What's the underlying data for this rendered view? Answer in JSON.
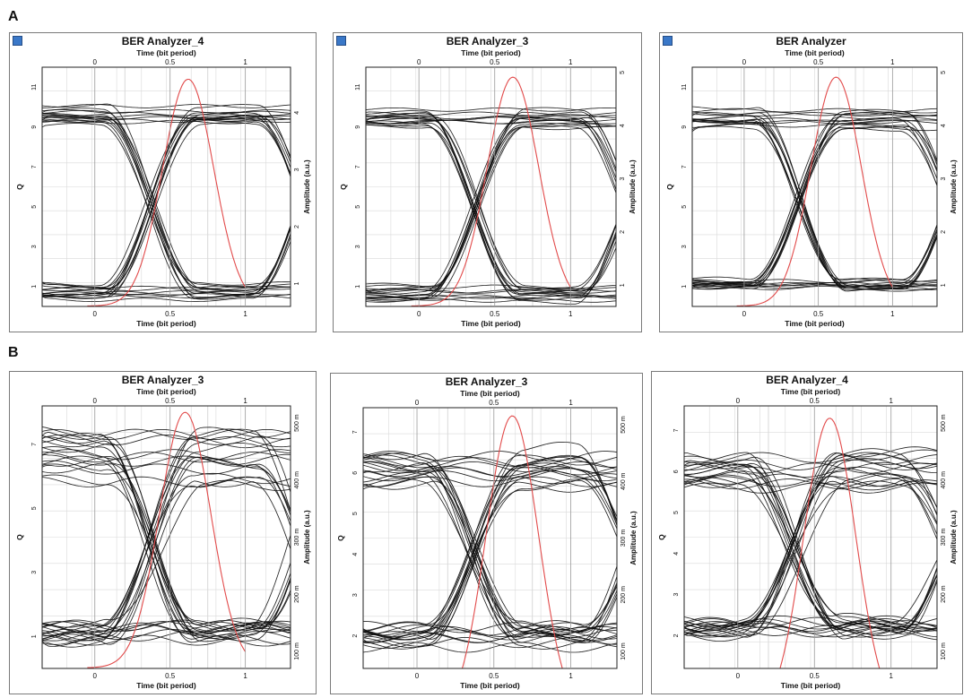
{
  "row_labels": [
    "A",
    "B"
  ],
  "chart_data": [
    {
      "type": "line",
      "title": "BER Analyzer_4",
      "xlabel": "Time (bit period)",
      "ylabel": "Q",
      "y2label": "Amplitude (a.u.)",
      "xlim": [
        -0.35,
        1.3
      ],
      "x_ticks": [
        "0",
        "0.5",
        "1"
      ],
      "y_ticks": [
        "1",
        "3",
        "5",
        "7",
        "9",
        "11"
      ],
      "y2_ticks": [
        "1",
        "2",
        "3",
        "4"
      ],
      "ylim": [
        0,
        12
      ],
      "y2lim": [
        0.6,
        4.8
      ],
      "grid": true,
      "eye": {
        "high": 9.6,
        "low": 0.8,
        "high_thick": 0.6,
        "low_thick": 0.6,
        "cross_thick": 0.7,
        "noise": 0.25,
        "traces": 34
      },
      "q_curve": {
        "peak_x": 0.62,
        "peak": 11.4,
        "sigma": 0.17,
        "start": 0.02
      }
    },
    {
      "type": "line",
      "title": "BER Analyzer_3",
      "xlabel": "Time (bit period)",
      "ylabel": "Q",
      "y2label": "Amplitude (a.u.)",
      "xlim": [
        -0.35,
        1.3
      ],
      "x_ticks": [
        "0",
        "0.5",
        "1"
      ],
      "y_ticks": [
        "1",
        "3",
        "5",
        "7",
        "9",
        "11"
      ],
      "y2_ticks": [
        "1",
        "2",
        "3",
        "4",
        "5"
      ],
      "ylim": [
        0,
        12
      ],
      "y2lim": [
        0.6,
        5.1
      ],
      "grid": true,
      "eye": {
        "high": 9.4,
        "low": 0.6,
        "high_thick": 0.6,
        "low_thick": 0.5,
        "cross_thick": 0.7,
        "noise": 0.25,
        "traces": 34
      },
      "q_curve": {
        "peak_x": 0.62,
        "peak": 11.5,
        "sigma": 0.17,
        "start": 0.02
      }
    },
    {
      "type": "line",
      "title": "BER Analyzer",
      "xlabel": "Time (bit period)",
      "ylabel": "Q",
      "y2label": "Amplitude (a.u.)",
      "xlim": [
        -0.35,
        1.3
      ],
      "x_ticks": [
        "0",
        "0.5",
        "1"
      ],
      "y_ticks": [
        "1",
        "3",
        "5",
        "7",
        "9",
        "11"
      ],
      "y2_ticks": [
        "1",
        "2",
        "3",
        "4",
        "5"
      ],
      "ylim": [
        0,
        12
      ],
      "y2lim": [
        0.6,
        5.1
      ],
      "grid": true,
      "eye": {
        "high": 9.4,
        "low": 1.1,
        "high_thick": 0.6,
        "low_thick": 0.4,
        "cross_thick": 0.7,
        "noise": 0.25,
        "traces": 34
      },
      "q_curve": {
        "peak_x": 0.62,
        "peak": 11.5,
        "sigma": 0.17,
        "start": 0.02
      }
    },
    {
      "type": "line",
      "title": "BER Analyzer_3",
      "xlabel": "Time (bit period)",
      "ylabel": "Q",
      "y2label": "Amplitude (a.u.)",
      "xlim": [
        -0.35,
        1.3
      ],
      "x_ticks": [
        "0",
        "0.5",
        "1"
      ],
      "y_ticks": [
        "1",
        "3",
        "5",
        "7"
      ],
      "y2_ticks": [
        "100 m",
        "200 m",
        "300 m",
        "400 m",
        "500 m"
      ],
      "ylim": [
        0,
        8.2
      ],
      "y2lim": [
        0.07,
        0.53
      ],
      "grid": true,
      "eye": {
        "high": 6.6,
        "low": 1.1,
        "high_thick": 1.0,
        "low_thick": 0.45,
        "cross_thick": 1.0,
        "noise": 0.45,
        "traces": 40
      },
      "q_curve": {
        "peak_x": 0.6,
        "peak": 8.0,
        "sigma": 0.17,
        "start": 0.02
      }
    },
    {
      "type": "line",
      "title": "BER Analyzer_3",
      "xlabel": "Time (bit period)",
      "ylabel": "Q",
      "y2label": "Amplitude (a.u.)",
      "xlim": [
        -0.35,
        1.3
      ],
      "x_ticks": [
        "0",
        "0.5",
        "1"
      ],
      "y_ticks": [
        "2",
        "3",
        "4",
        "5",
        "6",
        "7"
      ],
      "y2_ticks": [
        "100 m",
        "200 m",
        "300 m",
        "400 m",
        "500 m"
      ],
      "ylim": [
        1.2,
        7.6
      ],
      "y2lim": [
        0.07,
        0.53
      ],
      "grid": true,
      "eye": {
        "high": 6.1,
        "low": 2.0,
        "high_thick": 0.6,
        "low_thick": 0.3,
        "cross_thick": 0.7,
        "noise": 0.35,
        "traces": 40
      },
      "q_curve": {
        "peak_x": 0.62,
        "peak": 7.4,
        "sigma": 0.17,
        "start": 0.02
      }
    },
    {
      "type": "line",
      "title": "BER Analyzer_4",
      "xlabel": "Time (bit period)",
      "ylabel": "Q",
      "y2label": "Amplitude (a.u.)",
      "xlim": [
        -0.35,
        1.3
      ],
      "x_ticks": [
        "0",
        "0.5",
        "1"
      ],
      "y_ticks": [
        "2",
        "3",
        "4",
        "5",
        "6",
        "7"
      ],
      "y2_ticks": [
        "100 m",
        "200 m",
        "300 m",
        "400 m",
        "500 m"
      ],
      "ylim": [
        1.2,
        7.6
      ],
      "y2lim": [
        0.07,
        0.53
      ],
      "grid": true,
      "eye": {
        "high": 6.0,
        "low": 2.2,
        "high_thick": 0.6,
        "low_thick": 0.25,
        "cross_thick": 0.7,
        "noise": 0.35,
        "traces": 40
      },
      "q_curve": {
        "peak_x": 0.6,
        "peak": 7.3,
        "sigma": 0.17,
        "start": 0.02
      }
    }
  ],
  "colors": {
    "trace": "#0d0d0d",
    "q_curve": "#e24a4a",
    "grid": "#d9d9d9",
    "axis": "#222222"
  }
}
